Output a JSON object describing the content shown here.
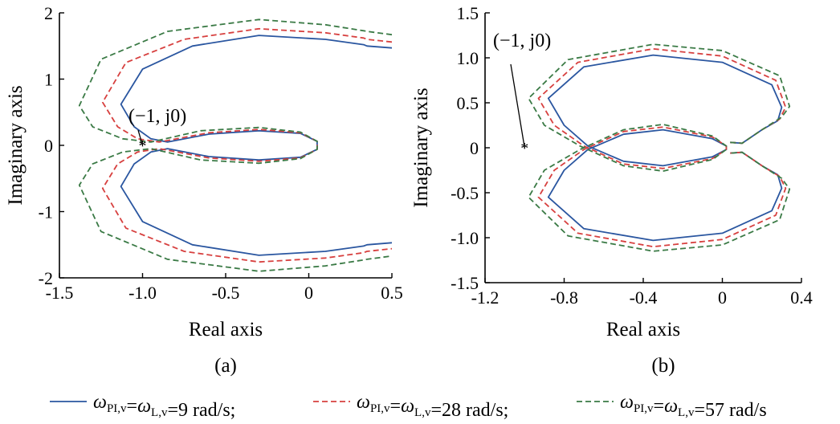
{
  "legend": {
    "entries": [
      {
        "omega": "ω",
        "sub1": "PI,v",
        "mid": "=",
        "omega2": "ω",
        "sub2": "L,v",
        "value": "=9 rad/s;",
        "color": "#2a56a0",
        "dash": "solid"
      },
      {
        "omega": "ω",
        "sub1": "PI,v",
        "mid": "=",
        "omega2": "ω",
        "sub2": "L,v",
        "value": "=28 rad/s;",
        "color": "#d7403f",
        "dash": "dashed"
      },
      {
        "omega": "ω",
        "sub1": "PI,v",
        "mid": "=",
        "omega2": "ω",
        "sub2": "L,v",
        "value": "=57 rad/s",
        "color": "#3a7a45",
        "dash": "dashed"
      }
    ]
  },
  "chart_data": [
    {
      "type": "line",
      "panel_label": "(a)",
      "xlabel": "Real axis",
      "ylabel": "Imaginary axis",
      "xlim": [
        -1.5,
        0.5
      ],
      "ylim": [
        -2,
        2
      ],
      "xticks": [
        -1.5,
        -1.0,
        -0.5,
        0,
        0.5
      ],
      "xtick_labels": [
        "-1.5",
        "-1.0",
        "-0.5",
        "0",
        "0.5"
      ],
      "yticks": [
        -2,
        -1,
        0,
        1,
        2
      ],
      "ytick_labels": [
        "-2",
        "-1",
        "0",
        "1",
        "2"
      ],
      "annotation": {
        "text": "(−1, j0)",
        "point": [
          -1,
          0
        ]
      },
      "series": [
        {
          "color": "#2a56a0",
          "dash": "solid",
          "points": [
            [
              0.5,
              1.47
            ],
            [
              0.35,
              1.5
            ],
            [
              0.33,
              1.52
            ],
            [
              0.1,
              1.6
            ],
            [
              -0.3,
              1.66
            ],
            [
              -0.7,
              1.5
            ],
            [
              -1.0,
              1.15
            ],
            [
              -1.13,
              0.62
            ],
            [
              -1.05,
              0.28
            ],
            [
              -0.95,
              0.1
            ],
            [
              -0.85,
              0.05
            ],
            [
              -0.6,
              0.17
            ],
            [
              -0.3,
              0.22
            ],
            [
              -0.05,
              0.18
            ],
            [
              0.05,
              0.06
            ],
            [
              0.05,
              0.0
            ],
            [
              0.05,
              -0.06
            ],
            [
              -0.05,
              -0.18
            ],
            [
              -0.3,
              -0.22
            ],
            [
              -0.6,
              -0.17
            ],
            [
              -0.85,
              -0.05
            ],
            [
              -0.95,
              -0.1
            ],
            [
              -1.05,
              -0.28
            ],
            [
              -1.13,
              -0.62
            ],
            [
              -1.0,
              -1.15
            ],
            [
              -0.7,
              -1.5
            ],
            [
              -0.3,
              -1.66
            ],
            [
              0.1,
              -1.6
            ],
            [
              0.33,
              -1.52
            ],
            [
              0.35,
              -1.5
            ],
            [
              0.5,
              -1.47
            ]
          ]
        },
        {
          "color": "#d7403f",
          "dash": "dashed",
          "points": [
            [
              0.5,
              1.56
            ],
            [
              0.35,
              1.6
            ],
            [
              0.33,
              1.62
            ],
            [
              0.1,
              1.7
            ],
            [
              -0.3,
              1.76
            ],
            [
              -0.75,
              1.6
            ],
            [
              -1.1,
              1.25
            ],
            [
              -1.24,
              0.65
            ],
            [
              -1.15,
              0.28
            ],
            [
              -1.03,
              0.1
            ],
            [
              -0.9,
              0.05
            ],
            [
              -0.6,
              0.19
            ],
            [
              -0.3,
              0.24
            ],
            [
              -0.05,
              0.19
            ],
            [
              0.05,
              0.06
            ],
            [
              0.05,
              0.0
            ],
            [
              0.05,
              -0.06
            ],
            [
              -0.05,
              -0.19
            ],
            [
              -0.3,
              -0.24
            ],
            [
              -0.6,
              -0.19
            ],
            [
              -0.9,
              -0.05
            ],
            [
              -1.03,
              -0.1
            ],
            [
              -1.15,
              -0.28
            ],
            [
              -1.24,
              -0.65
            ],
            [
              -1.1,
              -1.25
            ],
            [
              -0.75,
              -1.6
            ],
            [
              -0.3,
              -1.76
            ],
            [
              0.1,
              -1.7
            ],
            [
              0.33,
              -1.62
            ],
            [
              0.35,
              -1.6
            ],
            [
              0.5,
              -1.56
            ]
          ]
        },
        {
          "color": "#3a7a45",
          "dash": "dashed",
          "points": [
            [
              0.5,
              1.67
            ],
            [
              0.35,
              1.72
            ],
            [
              0.33,
              1.73
            ],
            [
              0.1,
              1.82
            ],
            [
              -0.3,
              1.9
            ],
            [
              -0.85,
              1.72
            ],
            [
              -1.25,
              1.3
            ],
            [
              -1.38,
              0.6
            ],
            [
              -1.3,
              0.28
            ],
            [
              -1.12,
              0.1
            ],
            [
              -0.95,
              0.05
            ],
            [
              -0.65,
              0.22
            ],
            [
              -0.3,
              0.27
            ],
            [
              -0.05,
              0.2
            ],
            [
              0.05,
              0.06
            ],
            [
              0.05,
              0.0
            ],
            [
              0.05,
              -0.06
            ],
            [
              -0.05,
              -0.2
            ],
            [
              -0.3,
              -0.27
            ],
            [
              -0.65,
              -0.22
            ],
            [
              -0.95,
              -0.05
            ],
            [
              -1.12,
              -0.1
            ],
            [
              -1.3,
              -0.28
            ],
            [
              -1.38,
              -0.6
            ],
            [
              -1.25,
              -1.3
            ],
            [
              -0.85,
              -1.72
            ],
            [
              -0.3,
              -1.9
            ],
            [
              0.1,
              -1.82
            ],
            [
              0.33,
              -1.73
            ],
            [
              0.35,
              -1.72
            ],
            [
              0.5,
              -1.67
            ]
          ]
        }
      ]
    },
    {
      "type": "line",
      "panel_label": "(b)",
      "xlabel": "Real axis",
      "ylabel": "Imaginary axis",
      "xlim": [
        -1.2,
        0.4
      ],
      "ylim": [
        -1.5,
        1.5
      ],
      "xticks": [
        -1.2,
        -0.8,
        -0.4,
        0,
        0.4
      ],
      "xtick_labels": [
        "-1.2",
        "-0.8",
        "-0.4",
        "0",
        "0.4"
      ],
      "yticks": [
        -1.5,
        -1.0,
        -0.5,
        0,
        0.5,
        1.0,
        1.5
      ],
      "ytick_labels": [
        "-1.5",
        "-1.0",
        "-0.5",
        "0",
        "0.5",
        "1.0",
        "1.5"
      ],
      "annotation": {
        "text": "(−1, j0)",
        "point": [
          -1,
          0
        ]
      },
      "series": [
        {
          "color": "#2a56a0",
          "dash": "solid",
          "points": [
            [
              0.04,
              0.06
            ],
            [
              0.1,
              0.05
            ],
            [
              0.2,
              0.2
            ],
            [
              0.28,
              0.3
            ],
            [
              0.3,
              0.45
            ],
            [
              0.25,
              0.7
            ],
            [
              0.0,
              0.95
            ],
            [
              -0.35,
              1.03
            ],
            [
              -0.7,
              0.9
            ],
            [
              -0.88,
              0.55
            ],
            [
              -0.8,
              0.25
            ],
            [
              -0.68,
              0.02
            ],
            [
              -0.5,
              -0.15
            ],
            [
              -0.3,
              -0.2
            ],
            [
              -0.05,
              -0.1
            ],
            [
              0.02,
              -0.02
            ],
            [
              0.02,
              0.02
            ],
            [
              -0.05,
              0.1
            ],
            [
              -0.3,
              0.2
            ],
            [
              -0.5,
              0.15
            ],
            [
              -0.68,
              -0.02
            ],
            [
              -0.8,
              -0.25
            ],
            [
              -0.88,
              -0.55
            ],
            [
              -0.7,
              -0.9
            ],
            [
              -0.35,
              -1.03
            ],
            [
              0.0,
              -0.95
            ],
            [
              0.25,
              -0.7
            ],
            [
              0.3,
              -0.45
            ],
            [
              0.28,
              -0.3
            ],
            [
              0.2,
              -0.2
            ],
            [
              0.1,
              -0.05
            ],
            [
              0.04,
              -0.06
            ]
          ]
        },
        {
          "color": "#d7403f",
          "dash": "dashed",
          "points": [
            [
              0.04,
              0.06
            ],
            [
              0.1,
              0.05
            ],
            [
              0.2,
              0.2
            ],
            [
              0.29,
              0.32
            ],
            [
              0.32,
              0.45
            ],
            [
              0.27,
              0.75
            ],
            [
              0.0,
              1.02
            ],
            [
              -0.35,
              1.1
            ],
            [
              -0.73,
              0.95
            ],
            [
              -0.93,
              0.55
            ],
            [
              -0.85,
              0.25
            ],
            [
              -0.7,
              0.02
            ],
            [
              -0.5,
              -0.18
            ],
            [
              -0.3,
              -0.23
            ],
            [
              -0.05,
              -0.12
            ],
            [
              0.02,
              -0.02
            ],
            [
              0.02,
              0.02
            ],
            [
              -0.05,
              0.12
            ],
            [
              -0.3,
              0.23
            ],
            [
              -0.5,
              0.18
            ],
            [
              -0.7,
              -0.02
            ],
            [
              -0.85,
              -0.25
            ],
            [
              -0.93,
              -0.55
            ],
            [
              -0.73,
              -0.95
            ],
            [
              -0.35,
              -1.1
            ],
            [
              0.0,
              -1.02
            ],
            [
              0.27,
              -0.75
            ],
            [
              0.32,
              -0.45
            ],
            [
              0.29,
              -0.32
            ],
            [
              0.2,
              -0.2
            ],
            [
              0.1,
              -0.05
            ],
            [
              0.04,
              -0.06
            ]
          ]
        },
        {
          "color": "#3a7a45",
          "dash": "dashed",
          "points": [
            [
              0.04,
              0.06
            ],
            [
              0.1,
              0.05
            ],
            [
              0.2,
              0.2
            ],
            [
              0.3,
              0.34
            ],
            [
              0.34,
              0.46
            ],
            [
              0.29,
              0.8
            ],
            [
              0.0,
              1.08
            ],
            [
              -0.35,
              1.15
            ],
            [
              -0.78,
              0.98
            ],
            [
              -0.98,
              0.55
            ],
            [
              -0.9,
              0.25
            ],
            [
              -0.72,
              0.02
            ],
            [
              -0.5,
              -0.2
            ],
            [
              -0.3,
              -0.26
            ],
            [
              -0.05,
              -0.13
            ],
            [
              0.02,
              -0.02
            ],
            [
              0.02,
              0.02
            ],
            [
              -0.05,
              0.13
            ],
            [
              -0.3,
              0.26
            ],
            [
              -0.5,
              0.2
            ],
            [
              -0.72,
              -0.02
            ],
            [
              -0.9,
              -0.25
            ],
            [
              -0.98,
              -0.55
            ],
            [
              -0.78,
              -0.98
            ],
            [
              -0.35,
              -1.15
            ],
            [
              0.0,
              -1.08
            ],
            [
              0.29,
              -0.8
            ],
            [
              0.34,
              -0.46
            ],
            [
              0.3,
              -0.34
            ],
            [
              0.2,
              -0.2
            ],
            [
              0.1,
              -0.05
            ],
            [
              0.04,
              -0.06
            ]
          ]
        }
      ]
    }
  ]
}
